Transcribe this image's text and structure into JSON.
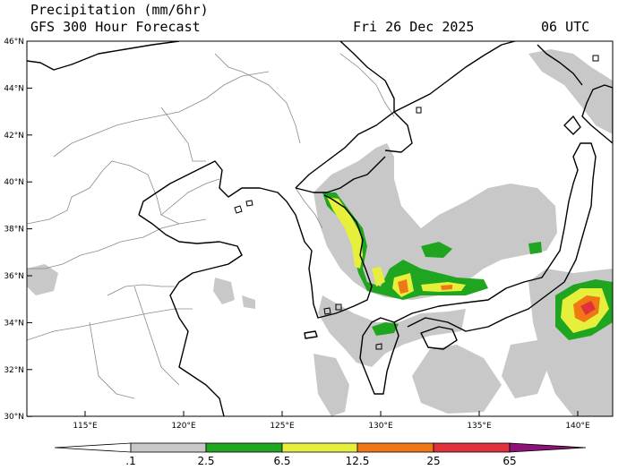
{
  "header": {
    "title_line1": "Precipitation (mm/6hr)",
    "title_line2": "GFS 300 Hour Forecast",
    "valid_date": "Fri 26 Dec 2025",
    "valid_time": "06 UTC"
  },
  "map": {
    "lat_labels": [
      "46°N",
      "44°N",
      "42°N",
      "40°N",
      "38°N",
      "36°N",
      "34°N",
      "32°N",
      "30°N"
    ],
    "lon_labels": [
      "115°E",
      "120°E",
      "125°E",
      "130°E",
      "135°E",
      "140°E"
    ],
    "colors": {
      "level_01": "#c8c8c8",
      "level_25": "#1fa51f",
      "level_65": "#e6f03c",
      "level_125": "#f07814",
      "level_25b": "#e0323c",
      "level_65b": "#8c1478",
      "coast": "#000000",
      "border": "#8a8a8a"
    }
  },
  "colorbar": {
    "labels": [
      ".1",
      "2.5",
      "6.5",
      "12.5",
      "25",
      "65"
    ],
    "colors": [
      "#ffffff",
      "#c8c8c8",
      "#1fa51f",
      "#e6f03c",
      "#f07814",
      "#e0323c",
      "#8c1478"
    ]
  }
}
